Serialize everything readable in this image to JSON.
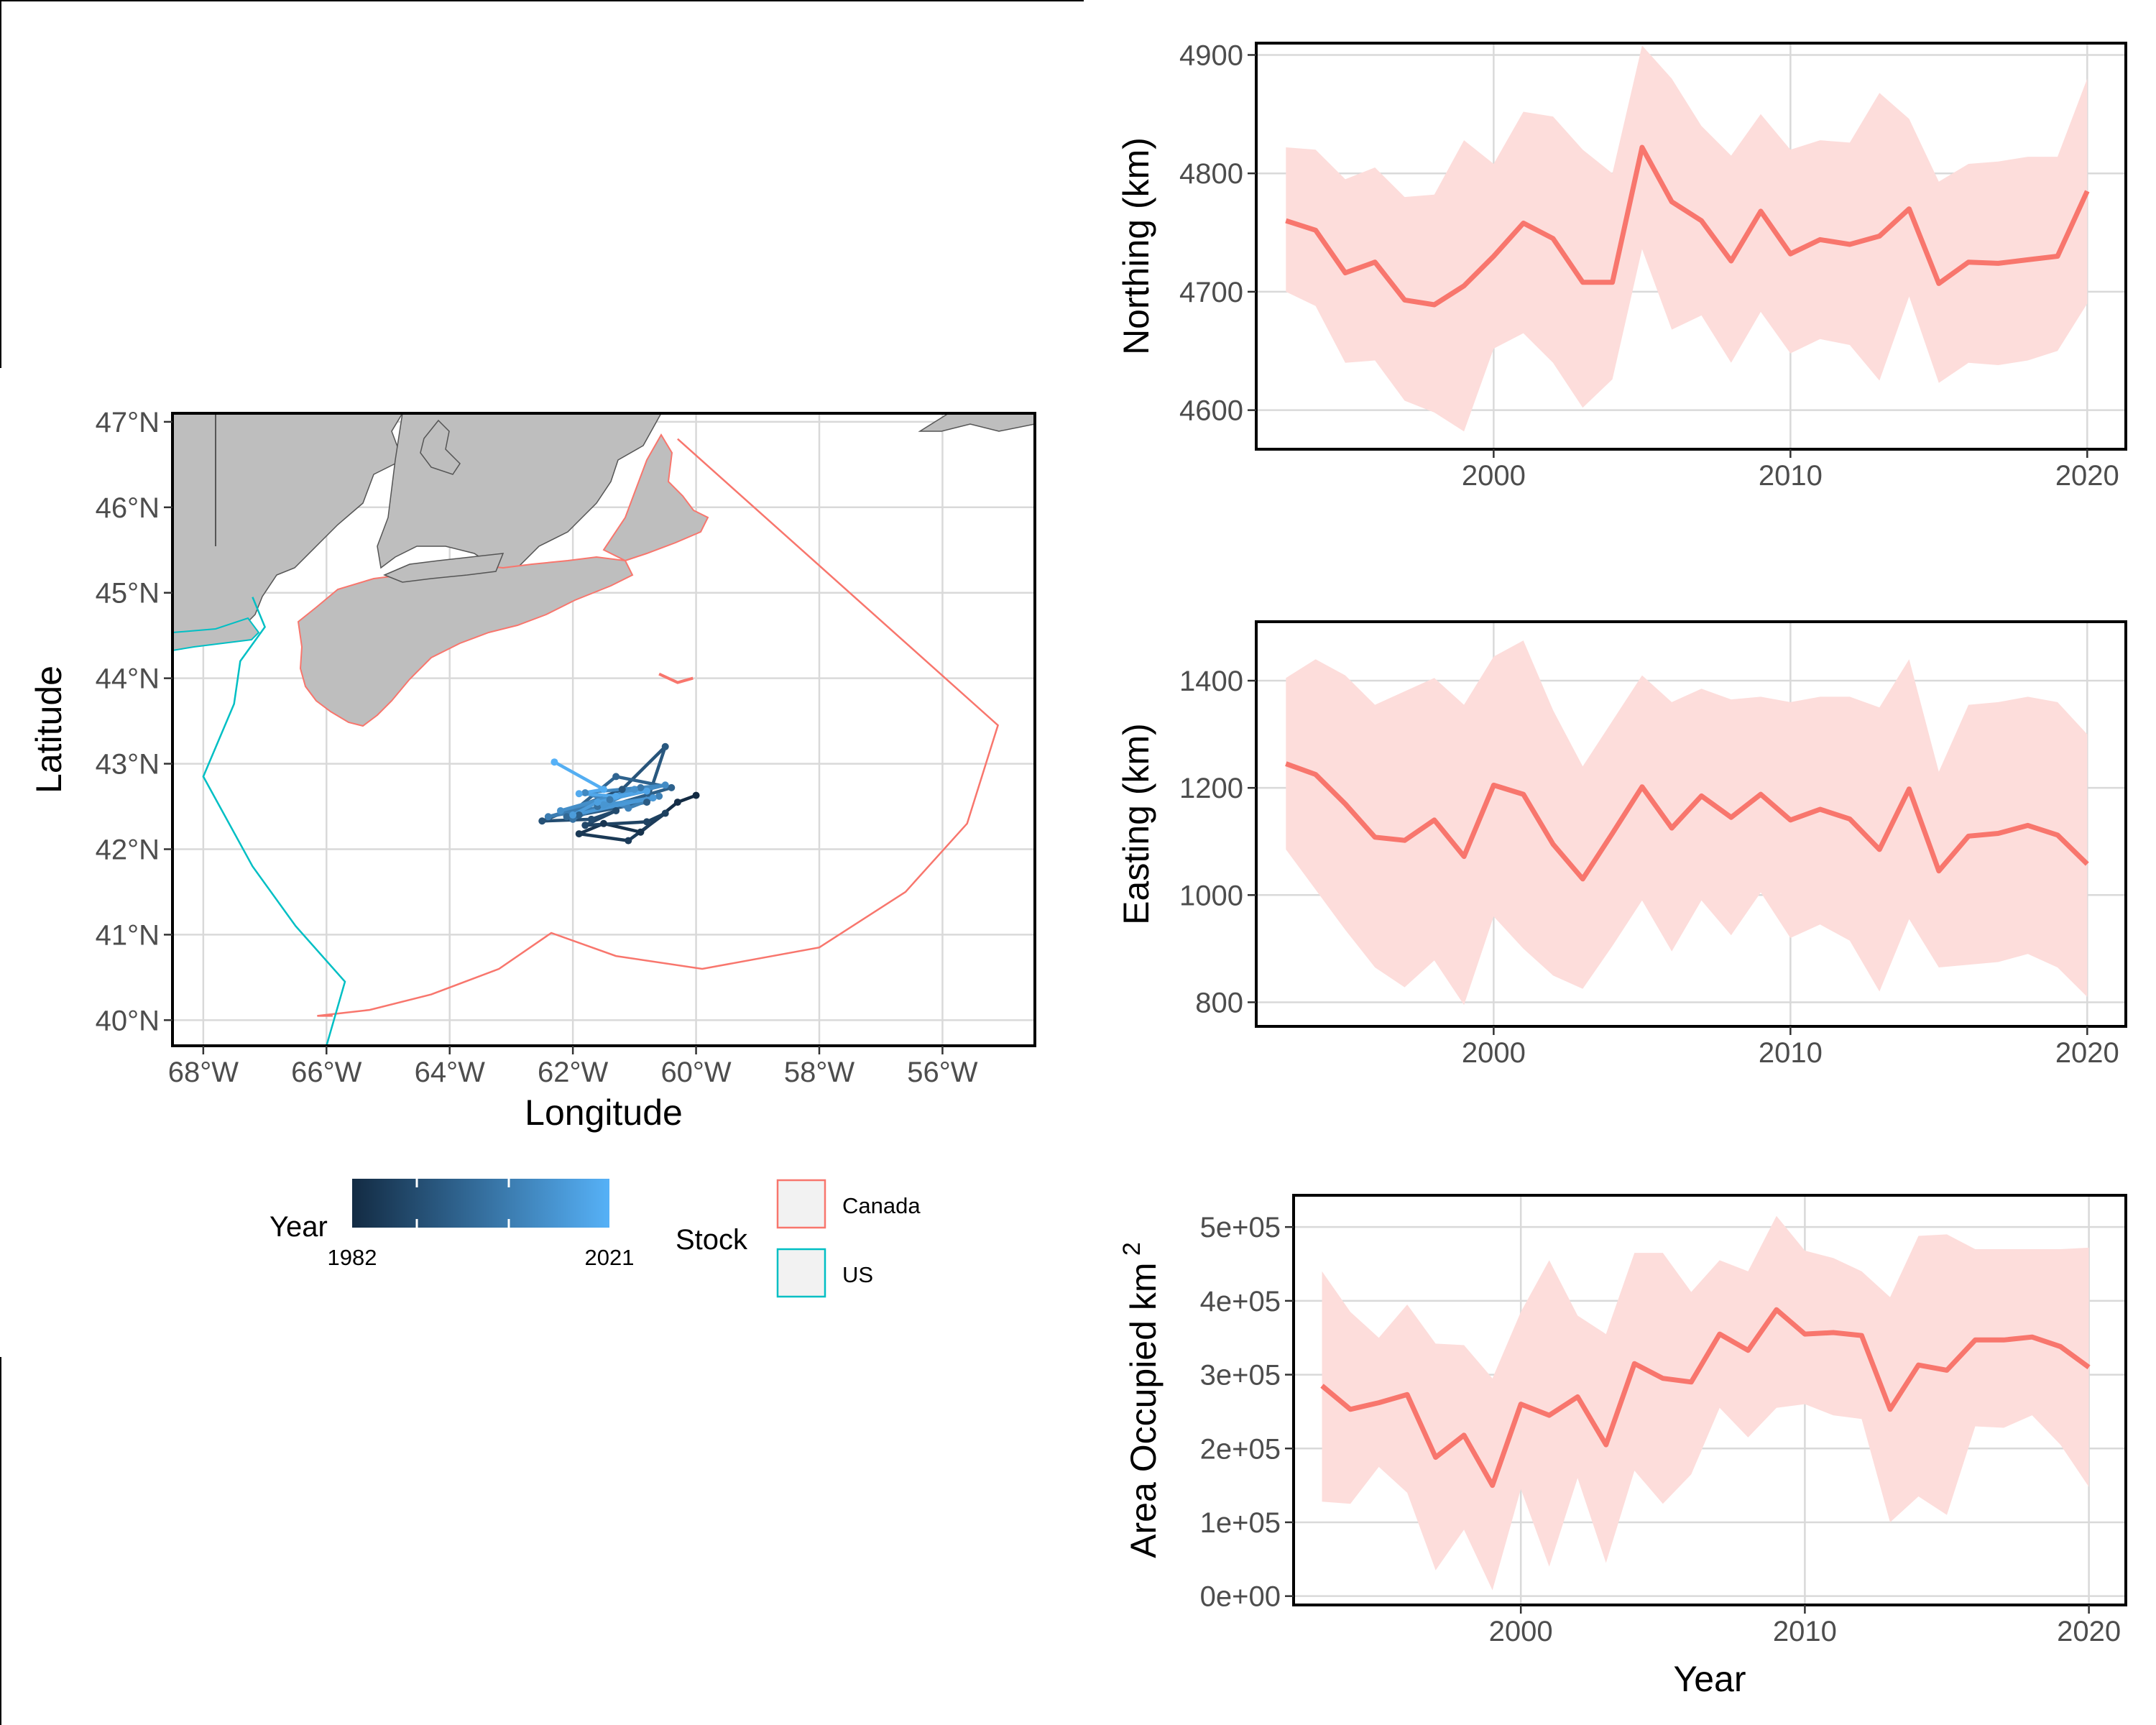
{
  "colors": {
    "series_line": "#F8766D",
    "ci_band": "#FDDDDB",
    "canada": "#F8766D",
    "us": "#00BFC4",
    "land": "#BEBEBE",
    "grid": "#D9D9D9",
    "year_low": "#132B43",
    "year_high": "#56B1F7"
  },
  "chart_data": [
    {
      "type": "map",
      "xlabel": "Longitude",
      "ylabel": "Latitude",
      "x_ticks": [
        "68°W",
        "66°W",
        "64°W",
        "62°W",
        "60°W",
        "58°W",
        "56°W"
      ],
      "y_ticks": [
        "40°N",
        "41°N",
        "42°N",
        "43°N",
        "44°N",
        "45°N",
        "46°N",
        "47°N"
      ],
      "xlim": [
        -68.5,
        -54.5
      ],
      "ylim": [
        39.7,
        47.1
      ],
      "grid": true,
      "legend": {
        "year_title": "Year",
        "year_min_label": "1982",
        "year_max_label": "2021",
        "stock_title": "Stock",
        "stock_entries": [
          "Canada",
          "US"
        ]
      },
      "canada_boundary": [
        [
          -60.3,
          46.8
        ],
        [
          -55.1,
          43.45
        ],
        [
          -55.6,
          42.3
        ],
        [
          -56.6,
          41.5
        ],
        [
          -58.0,
          40.85
        ],
        [
          -59.9,
          40.6
        ],
        [
          -61.3,
          40.75
        ],
        [
          -62.35,
          41.02
        ],
        [
          -63.2,
          40.6
        ],
        [
          -64.3,
          40.3
        ],
        [
          -65.3,
          40.12
        ],
        [
          -66.15,
          40.05
        ],
        [
          -65.9,
          40.05
        ]
      ],
      "canada_arc": [
        [
          -60.6,
          44.05
        ],
        [
          -60.3,
          43.95
        ],
        [
          -60.05,
          44.0
        ]
      ],
      "us_boundary": [
        [
          -67.2,
          44.95
        ],
        [
          -67.0,
          44.6
        ],
        [
          -67.4,
          44.2
        ],
        [
          -67.5,
          43.7
        ],
        [
          -68.0,
          42.85
        ],
        [
          -67.2,
          41.8
        ],
        [
          -66.5,
          41.1
        ],
        [
          -65.7,
          40.45
        ],
        [
          -66.0,
          39.7
        ]
      ],
      "centroid_track": {
        "years": [
          1982,
          1983,
          1984,
          1985,
          1986,
          1987,
          1988,
          1989,
          1990,
          1991,
          1992,
          1993,
          1994,
          1995,
          1996,
          1997,
          1998,
          1999,
          2000,
          2001,
          2002,
          2003,
          2004,
          2005,
          2006,
          2007,
          2008,
          2009,
          2010,
          2011,
          2012,
          2013,
          2014,
          2015,
          2016,
          2017,
          2018,
          2019,
          2020,
          2021
        ],
        "lon": [
          -60.0,
          -60.3,
          -60.9,
          -61.5,
          -61.9,
          -61.1,
          -60.5,
          -60.8,
          -61.8,
          -61.3,
          -61.7,
          -62.5,
          -61.2,
          -60.5,
          -60.8,
          -61.9,
          -60.4,
          -61.3,
          -62.1,
          -60.7,
          -61.6,
          -62.0,
          -60.9,
          -61.4,
          -62.4,
          -60.6,
          -61.1,
          -61.8,
          -60.5,
          -62.2,
          -61.0,
          -61.5,
          -60.7,
          -62.0,
          -61.6,
          -60.8,
          -61.3,
          -61.9,
          -61.5,
          -62.3
        ],
        "lat": [
          42.63,
          42.55,
          42.2,
          42.3,
          42.18,
          42.1,
          42.42,
          42.32,
          42.28,
          42.45,
          42.35,
          42.33,
          42.7,
          43.2,
          42.55,
          42.4,
          42.72,
          42.85,
          42.38,
          42.6,
          42.5,
          42.35,
          42.72,
          42.58,
          42.38,
          42.62,
          42.48,
          42.66,
          42.75,
          42.45,
          42.7,
          42.52,
          42.6,
          42.4,
          42.55,
          42.68,
          42.62,
          42.65,
          42.7,
          43.02
        ]
      }
    },
    {
      "type": "line",
      "ylabel": "Northing (km)",
      "x_ticks": [
        "2000",
        "2010",
        "2020"
      ],
      "y_ticks": [
        "4600",
        "4700",
        "4800",
        "4900"
      ],
      "xlim": [
        1992,
        2021.3
      ],
      "ylim": [
        4567,
        4910
      ],
      "grid": true,
      "x": [
        1993,
        1994,
        1995,
        1996,
        1997,
        1998,
        1999,
        2000,
        2001,
        2002,
        2003,
        2004,
        2005,
        2006,
        2007,
        2008,
        2009,
        2010,
        2011,
        2012,
        2013,
        2014,
        2015,
        2016,
        2017,
        2018,
        2019,
        2020
      ],
      "values": [
        4760,
        4752,
        4716,
        4725,
        4693,
        4689,
        4705,
        4730,
        4758,
        4745,
        4708,
        4708,
        4822,
        4776,
        4760,
        4726,
        4768,
        4732,
        4744,
        4740,
        4747,
        4770,
        4707,
        4725,
        4724,
        4727,
        4730,
        4785
      ],
      "upper": [
        4822,
        4820,
        4795,
        4805,
        4780,
        4782,
        4828,
        4808,
        4852,
        4848,
        4820,
        4800,
        4908,
        4880,
        4840,
        4815,
        4850,
        4820,
        4828,
        4826,
        4868,
        4846,
        4793,
        4808,
        4810,
        4814,
        4814,
        4880
      ],
      "lower": [
        4700,
        4688,
        4640,
        4642,
        4608,
        4598,
        4582,
        4652,
        4665,
        4640,
        4602,
        4626,
        4736,
        4668,
        4680,
        4640,
        4683,
        4648,
        4660,
        4655,
        4625,
        4696,
        4623,
        4640,
        4638,
        4642,
        4650,
        4690
      ]
    },
    {
      "type": "line",
      "ylabel": "Easting (km)",
      "x_ticks": [
        "2000",
        "2010",
        "2020"
      ],
      "y_ticks": [
        "800",
        "1000",
        "1200",
        "1400"
      ],
      "xlim": [
        1992,
        2021.3
      ],
      "ylim": [
        755,
        1510
      ],
      "grid": true,
      "x": [
        1993,
        1994,
        1995,
        1996,
        1997,
        1998,
        1999,
        2000,
        2001,
        2002,
        2003,
        2004,
        2005,
        2006,
        2007,
        2008,
        2009,
        2010,
        2011,
        2012,
        2013,
        2014,
        2015,
        2016,
        2017,
        2018,
        2019,
        2020
      ],
      "values": [
        1245,
        1225,
        1170,
        1108,
        1102,
        1140,
        1072,
        1205,
        1188,
        1095,
        1030,
        1115,
        1202,
        1125,
        1185,
        1145,
        1188,
        1140,
        1160,
        1142,
        1085,
        1198,
        1045,
        1110,
        1115,
        1130,
        1112,
        1058
      ],
      "upper": [
        1405,
        1440,
        1410,
        1355,
        1380,
        1405,
        1355,
        1445,
        1475,
        1345,
        1240,
        1325,
        1410,
        1360,
        1385,
        1365,
        1370,
        1360,
        1370,
        1370,
        1350,
        1440,
        1230,
        1355,
        1360,
        1370,
        1360,
        1300
      ],
      "lower": [
        1085,
        1010,
        935,
        865,
        828,
        878,
        795,
        960,
        900,
        850,
        825,
        905,
        990,
        895,
        990,
        925,
        1005,
        920,
        945,
        915,
        820,
        955,
        865,
        870,
        875,
        890,
        865,
        810
      ]
    },
    {
      "type": "line",
      "ylabel": "Area Occupied km",
      "ylabel_superscript": "2",
      "xlabel": "Year",
      "x_ticks": [
        "2000",
        "2010",
        "2020"
      ],
      "y_ticks": [
        "0e+00",
        "1e+05",
        "2e+05",
        "3e+05",
        "4e+05",
        "5e+05"
      ],
      "xlim": [
        1992,
        2021.3
      ],
      "ylim": [
        -12000,
        543000
      ],
      "grid": true,
      "x": [
        1993,
        1994,
        1995,
        1996,
        1997,
        1998,
        1999,
        2000,
        2001,
        2002,
        2003,
        2004,
        2005,
        2006,
        2007,
        2008,
        2009,
        2010,
        2011,
        2012,
        2013,
        2014,
        2015,
        2016,
        2017,
        2018,
        2019,
        2020
      ],
      "values": [
        285000,
        253000,
        262000,
        273000,
        188000,
        218000,
        150000,
        260000,
        245000,
        270000,
        205000,
        315000,
        295000,
        290000,
        355000,
        333000,
        388000,
        355000,
        357000,
        353000,
        253000,
        313000,
        306000,
        347000,
        347000,
        351000,
        338000,
        310000
      ],
      "upper": [
        440000,
        385000,
        350000,
        395000,
        342000,
        340000,
        295000,
        385000,
        455000,
        380000,
        355000,
        465000,
        465000,
        412000,
        455000,
        440000,
        515000,
        468000,
        458000,
        440000,
        405000,
        488000,
        490000,
        470000,
        470000,
        470000,
        470000,
        472000
      ],
      "lower": [
        128000,
        125000,
        175000,
        140000,
        35000,
        90000,
        8000,
        145000,
        40000,
        160000,
        45000,
        170000,
        125000,
        165000,
        255000,
        215000,
        255000,
        260000,
        245000,
        240000,
        100000,
        135000,
        110000,
        230000,
        228000,
        245000,
        205000,
        148000
      ]
    }
  ]
}
